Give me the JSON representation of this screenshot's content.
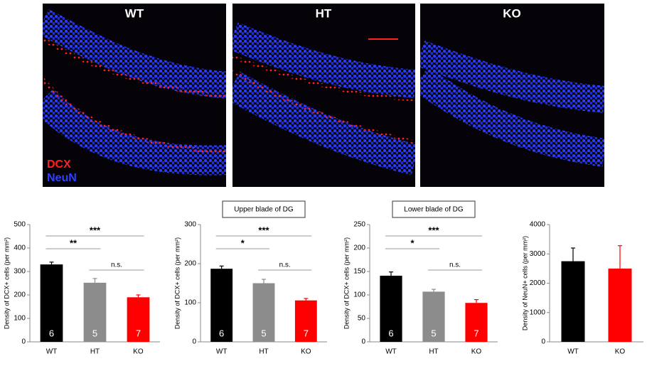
{
  "images": [
    {
      "label": "WT"
    },
    {
      "label": "HT"
    },
    {
      "label": "KO"
    }
  ],
  "stain_legend": [
    "DCX",
    "NeuN"
  ],
  "chart_data": [
    {
      "type": "bar",
      "ylabel": "Density of DCX+ cells (per mm²)",
      "categories": [
        "WT",
        "HT",
        "KO"
      ],
      "colors": [
        "#000000",
        "#8c8c8c",
        "#ff0000"
      ],
      "values": [
        330,
        252,
        190
      ],
      "errors": [
        10,
        18,
        10
      ],
      "n": [
        6,
        5,
        7
      ],
      "ylim": [
        0,
        500
      ],
      "yticks": [
        0,
        100,
        200,
        300,
        400,
        500
      ],
      "comparisons": [
        {
          "groups": [
            "WT",
            "KO"
          ],
          "label": "***"
        },
        {
          "groups": [
            "WT",
            "HT"
          ],
          "label": "**"
        },
        {
          "groups": [
            "HT",
            "KO"
          ],
          "label": "n.s."
        }
      ]
    },
    {
      "type": "bar",
      "title": "Upper blade of DG",
      "ylabel": "Density of DCX+ cells (per mm²)",
      "categories": [
        "WT",
        "HT",
        "KO"
      ],
      "colors": [
        "#000000",
        "#8c8c8c",
        "#ff0000"
      ],
      "values": [
        187,
        150,
        106
      ],
      "errors": [
        7,
        10,
        5
      ],
      "n": [
        6,
        5,
        7
      ],
      "ylim": [
        0,
        300
      ],
      "yticks": [
        0,
        100,
        200,
        300
      ],
      "comparisons": [
        {
          "groups": [
            "WT",
            "KO"
          ],
          "label": "***"
        },
        {
          "groups": [
            "WT",
            "HT"
          ],
          "label": "*"
        },
        {
          "groups": [
            "HT",
            "KO"
          ],
          "label": "n.s."
        }
      ]
    },
    {
      "type": "bar",
      "title": "Lower blade of DG",
      "ylabel": "Density of DCX+ cells (per mm²)",
      "categories": [
        "WT",
        "HT",
        "KO"
      ],
      "colors": [
        "#000000",
        "#8c8c8c",
        "#ff0000"
      ],
      "values": [
        141,
        107,
        83
      ],
      "errors": [
        8,
        5,
        7
      ],
      "n": [
        6,
        5,
        7
      ],
      "ylim": [
        0,
        250
      ],
      "yticks": [
        0,
        50,
        100,
        150,
        200,
        250
      ],
      "comparisons": [
        {
          "groups": [
            "WT",
            "KO"
          ],
          "label": "***"
        },
        {
          "groups": [
            "WT",
            "HT"
          ],
          "label": "*"
        },
        {
          "groups": [
            "HT",
            "KO"
          ],
          "label": "n.s."
        }
      ]
    },
    {
      "type": "bar",
      "ylabel": "Density of NeuN+ cells (per mm²)",
      "categories": [
        "WT",
        "KO"
      ],
      "colors": [
        "#000000",
        "#ff0000"
      ],
      "values": [
        2750,
        2500
      ],
      "errors": [
        450,
        780
      ],
      "ylim": [
        0,
        4000
      ],
      "yticks": [
        0,
        1000,
        2000,
        3000,
        4000
      ]
    }
  ]
}
